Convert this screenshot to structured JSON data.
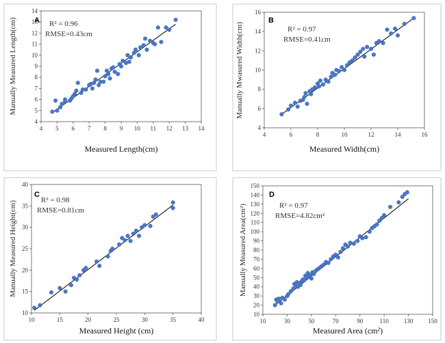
{
  "chart_data": [
    {
      "type": "scatter",
      "panel": "A",
      "xlabel": "Measured Length(cm)",
      "ylabel": "Manually Measured Length(cm)",
      "xlim": [
        4,
        14
      ],
      "ylim": [
        4,
        14
      ],
      "xticks": [
        4,
        5,
        6,
        7,
        8,
        9,
        10,
        11,
        12,
        13,
        14
      ],
      "yticks": [
        4,
        5,
        6,
        7,
        8,
        9,
        10,
        11,
        12,
        13,
        14
      ],
      "stats": {
        "r2": "R² = 0.96",
        "rmse": "RMSE=0.43cm"
      },
      "fit_line": [
        [
          4.7,
          4.8
        ],
        [
          12.4,
          12.8
        ]
      ],
      "points": [
        [
          4.7,
          4.9
        ],
        [
          4.9,
          5.9
        ],
        [
          5.0,
          5.0
        ],
        [
          5.2,
          5.3
        ],
        [
          5.3,
          5.6
        ],
        [
          5.5,
          5.8
        ],
        [
          5.5,
          6.0
        ],
        [
          5.8,
          5.9
        ],
        [
          5.9,
          6.1
        ],
        [
          6.0,
          6.3
        ],
        [
          6.1,
          6.5
        ],
        [
          6.2,
          6.8
        ],
        [
          6.3,
          7.5
        ],
        [
          6.5,
          6.6
        ],
        [
          6.6,
          6.9
        ],
        [
          6.8,
          6.9
        ],
        [
          7.0,
          7.3
        ],
        [
          7.1,
          7.4
        ],
        [
          7.2,
          7.0
        ],
        [
          7.3,
          7.5
        ],
        [
          7.4,
          7.8
        ],
        [
          7.5,
          8.6
        ],
        [
          7.6,
          7.3
        ],
        [
          7.7,
          7.6
        ],
        [
          7.9,
          7.6
        ],
        [
          8.0,
          8.1
        ],
        [
          8.1,
          8.6
        ],
        [
          8.2,
          8.3
        ],
        [
          8.3,
          7.9
        ],
        [
          8.4,
          8.8
        ],
        [
          8.5,
          8.9
        ],
        [
          8.6,
          8.5
        ],
        [
          8.8,
          8.3
        ],
        [
          8.9,
          9.2
        ],
        [
          9.0,
          9.0
        ],
        [
          9.1,
          9.5
        ],
        [
          9.3,
          9.3
        ],
        [
          9.4,
          10.0
        ],
        [
          9.5,
          9.4
        ],
        [
          9.6,
          9.8
        ],
        [
          9.8,
          10.2
        ],
        [
          9.9,
          10.5
        ],
        [
          10.1,
          10.0
        ],
        [
          10.2,
          10.7
        ],
        [
          10.4,
          10.9
        ],
        [
          10.5,
          11.5
        ],
        [
          10.6,
          10.5
        ],
        [
          10.8,
          11.3
        ],
        [
          11.0,
          11.1
        ],
        [
          11.1,
          11.0
        ],
        [
          11.3,
          12.5
        ],
        [
          11.5,
          11.2
        ],
        [
          11.8,
          12.5
        ],
        [
          12.0,
          12.3
        ],
        [
          12.4,
          13.2
        ]
      ]
    },
    {
      "type": "scatter",
      "panel": "B",
      "xlabel": "Measured Width(cm)",
      "ylabel": "Manually Mwasured Width(cm)",
      "xlim": [
        4,
        16
      ],
      "ylim": [
        4,
        16
      ],
      "xticks": [
        4,
        6,
        8,
        10,
        12,
        14,
        16
      ],
      "yticks": [
        4,
        6,
        8,
        10,
        12,
        14,
        16
      ],
      "stats": {
        "r2": "R² = 0.97",
        "rmse": "RMSE=0.41cm"
      },
      "fit_line": [
        [
          5.3,
          5.4
        ],
        [
          15.2,
          15.4
        ]
      ],
      "points": [
        [
          5.3,
          5.4
        ],
        [
          5.8,
          5.9
        ],
        [
          6.0,
          6.3
        ],
        [
          6.3,
          6.6
        ],
        [
          6.5,
          6.2
        ],
        [
          6.7,
          6.8
        ],
        [
          6.9,
          6.9
        ],
        [
          7.0,
          7.2
        ],
        [
          7.1,
          7.6
        ],
        [
          7.2,
          6.5
        ],
        [
          7.4,
          7.8
        ],
        [
          7.5,
          7.5
        ],
        [
          7.6,
          8.0
        ],
        [
          7.8,
          8.2
        ],
        [
          8.0,
          8.6
        ],
        [
          8.1,
          8.3
        ],
        [
          8.2,
          8.9
        ],
        [
          8.4,
          8.5
        ],
        [
          8.6,
          9.0
        ],
        [
          8.8,
          8.8
        ],
        [
          9.0,
          9.3
        ],
        [
          9.1,
          9.7
        ],
        [
          9.3,
          9.5
        ],
        [
          9.4,
          10.0
        ],
        [
          9.6,
          9.9
        ],
        [
          9.8,
          10.3
        ],
        [
          10.0,
          10.0
        ],
        [
          10.2,
          10.5
        ],
        [
          10.4,
          10.8
        ],
        [
          10.6,
          11.0
        ],
        [
          10.8,
          11.3
        ],
        [
          11.0,
          11.6
        ],
        [
          11.2,
          11.9
        ],
        [
          11.4,
          12.2
        ],
        [
          11.5,
          11.4
        ],
        [
          11.7,
          12.4
        ],
        [
          12.0,
          12.2
        ],
        [
          12.2,
          11.6
        ],
        [
          12.4,
          12.8
        ],
        [
          12.6,
          13.0
        ],
        [
          12.9,
          12.8
        ],
        [
          13.2,
          14.2
        ],
        [
          13.5,
          13.8
        ],
        [
          13.8,
          14.3
        ],
        [
          14.0,
          13.6
        ],
        [
          14.5,
          14.8
        ],
        [
          15.2,
          15.4
        ]
      ]
    },
    {
      "type": "scatter",
      "panel": "C",
      "xlabel": "Measured Height (cm)",
      "ylabel": "Manually Measured Height(cm)",
      "xlim": [
        10,
        40
      ],
      "ylim": [
        10,
        40
      ],
      "xticks": [
        10,
        15,
        20,
        25,
        30,
        35,
        40
      ],
      "yticks": [
        10,
        15,
        20,
        25,
        30,
        35,
        40
      ],
      "stats": {
        "r2": "R² = 0.98",
        "rmse": "RMSE=0.81cm"
      },
      "fit_line": [
        [
          10.5,
          10.6
        ],
        [
          35.0,
          35.2
        ]
      ],
      "points": [
        [
          10.5,
          11.2
        ],
        [
          11.5,
          11.8
        ],
        [
          13.5,
          14.8
        ],
        [
          15.0,
          15.8
        ],
        [
          16.0,
          15.0
        ],
        [
          17.0,
          16.5
        ],
        [
          17.5,
          18.2
        ],
        [
          18.0,
          17.8
        ],
        [
          18.5,
          18.8
        ],
        [
          19.2,
          20.0
        ],
        [
          19.6,
          20.5
        ],
        [
          21.5,
          22.0
        ],
        [
          22.0,
          21.0
        ],
        [
          23.5,
          23.2
        ],
        [
          24.0,
          24.5
        ],
        [
          24.3,
          25.0
        ],
        [
          25.5,
          26.0
        ],
        [
          26.0,
          27.5
        ],
        [
          26.5,
          27.0
        ],
        [
          27.0,
          28.0
        ],
        [
          27.5,
          26.8
        ],
        [
          28.0,
          28.5
        ],
        [
          28.5,
          29.2
        ],
        [
          29.0,
          28.0
        ],
        [
          29.5,
          30.0
        ],
        [
          30.0,
          30.5
        ],
        [
          31.0,
          30.3
        ],
        [
          31.5,
          32.5
        ],
        [
          32.0,
          33.0
        ],
        [
          35.0,
          35.8
        ],
        [
          35.0,
          34.5
        ]
      ]
    },
    {
      "type": "scatter",
      "panel": "D",
      "xlabel": "Measured Area (cm²)",
      "ylabel": "Manually Measured Area(cm²)",
      "xlim": [
        10,
        150
      ],
      "ylim": [
        10,
        150
      ],
      "xticks": [
        10,
        30,
        50,
        70,
        90,
        110,
        130,
        150
      ],
      "yticks": [
        10,
        20,
        30,
        40,
        50,
        60,
        70,
        80,
        90,
        100,
        110,
        120,
        130,
        140,
        150
      ],
      "stats": {
        "r2": "R² = 0.97",
        "rmse": "RMSE=4.82cm²"
      },
      "fit_line": [
        [
          20,
          20
        ],
        [
          130,
          136
        ]
      ],
      "points": [
        [
          20,
          20
        ],
        [
          21,
          26
        ],
        [
          22,
          24
        ],
        [
          23,
          27
        ],
        [
          25,
          22
        ],
        [
          26,
          28
        ],
        [
          28,
          26
        ],
        [
          30,
          30
        ],
        [
          31,
          32
        ],
        [
          33,
          35
        ],
        [
          35,
          38
        ],
        [
          36,
          43
        ],
        [
          37,
          41
        ],
        [
          38,
          45
        ],
        [
          39,
          40
        ],
        [
          40,
          44
        ],
        [
          41,
          42
        ],
        [
          42,
          46
        ],
        [
          43,
          48
        ],
        [
          44,
          47
        ],
        [
          45,
          52
        ],
        [
          46,
          50
        ],
        [
          47,
          55
        ],
        [
          48,
          51
        ],
        [
          49,
          53
        ],
        [
          50,
          49
        ],
        [
          51,
          56
        ],
        [
          52,
          54
        ],
        [
          54,
          58
        ],
        [
          56,
          60
        ],
        [
          58,
          62
        ],
        [
          60,
          64
        ],
        [
          62,
          67
        ],
        [
          64,
          66
        ],
        [
          66,
          70
        ],
        [
          68,
          73
        ],
        [
          70,
          75
        ],
        [
          72,
          72
        ],
        [
          74,
          78
        ],
        [
          76,
          82
        ],
        [
          78,
          86
        ],
        [
          80,
          84
        ],
        [
          82,
          88
        ],
        [
          85,
          87
        ],
        [
          88,
          90
        ],
        [
          90,
          95
        ],
        [
          92,
          93
        ],
        [
          95,
          94
        ],
        [
          98,
          100
        ],
        [
          100,
          104
        ],
        [
          102,
          106
        ],
        [
          104,
          108
        ],
        [
          106,
          112
        ],
        [
          108,
          115
        ],
        [
          110,
          118
        ],
        [
          115,
          127
        ],
        [
          122,
          132
        ],
        [
          125,
          138
        ],
        [
          127,
          141
        ],
        [
          129,
          143
        ]
      ]
    }
  ]
}
